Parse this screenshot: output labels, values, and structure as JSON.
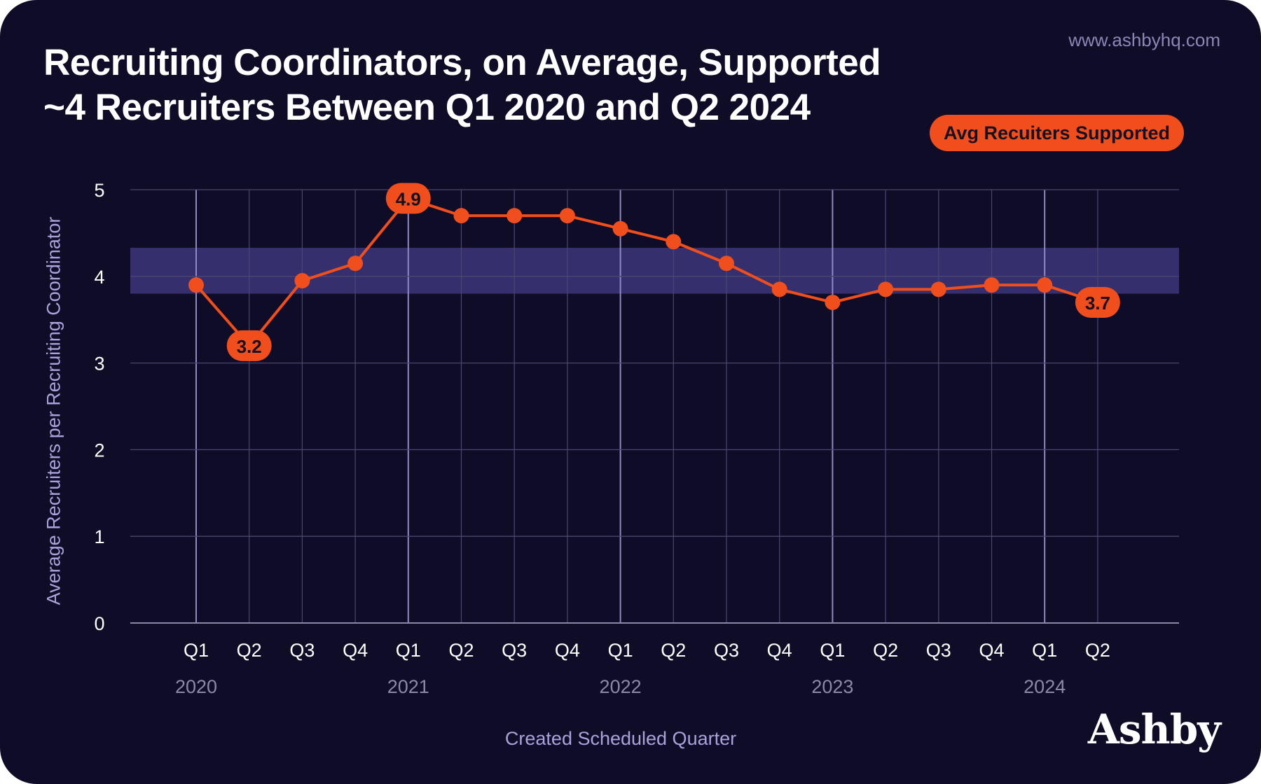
{
  "header": {
    "title": "Recruiting Coordinators, on Average, Supported ~4 Recruiters Between Q1 2020 and Q2 2024",
    "url": "www.ashbyhq.com",
    "logo": "Ashby"
  },
  "colors": {
    "background": "#0e0c27",
    "line": "#f04e1c",
    "band": "#35306d",
    "grid": "#4a4670",
    "year_grid": "#8f89c7",
    "axis_label": "#a9a3dc"
  },
  "chart_data": {
    "type": "line",
    "title": "Recruiting Coordinators, on Average, Supported ~4 Recruiters Between Q1 2020 and Q2 2024",
    "xlabel": "Created Scheduled Quarter",
    "ylabel": "Average Recruiters per Recruiting Coordinator",
    "ylim": [
      0,
      5
    ],
    "yticks": [
      0,
      1,
      2,
      3,
      4,
      5
    ],
    "grid": true,
    "legend": "top-right",
    "categories": [
      "Q1",
      "Q2",
      "Q3",
      "Q4",
      "Q1",
      "Q2",
      "Q3",
      "Q4",
      "Q1",
      "Q2",
      "Q3",
      "Q4",
      "Q1",
      "Q2",
      "Q3",
      "Q4",
      "Q1",
      "Q2"
    ],
    "year_labels": [
      {
        "label": "2020",
        "index": 0
      },
      {
        "label": "2021",
        "index": 4
      },
      {
        "label": "2022",
        "index": 8
      },
      {
        "label": "2023",
        "index": 12
      },
      {
        "label": "2024",
        "index": 16
      }
    ],
    "series": [
      {
        "name": "Avg Recuiters Supported",
        "values": [
          3.9,
          3.2,
          3.95,
          4.15,
          4.9,
          4.7,
          4.7,
          4.7,
          4.55,
          4.4,
          4.15,
          3.85,
          3.7,
          3.85,
          3.85,
          3.9,
          3.9,
          3.7
        ]
      }
    ],
    "band": [
      3.8,
      4.33
    ],
    "data_labels": [
      {
        "index": 1,
        "text": "3.2"
      },
      {
        "index": 4,
        "text": "4.9"
      },
      {
        "index": 17,
        "text": "3.7"
      }
    ]
  }
}
